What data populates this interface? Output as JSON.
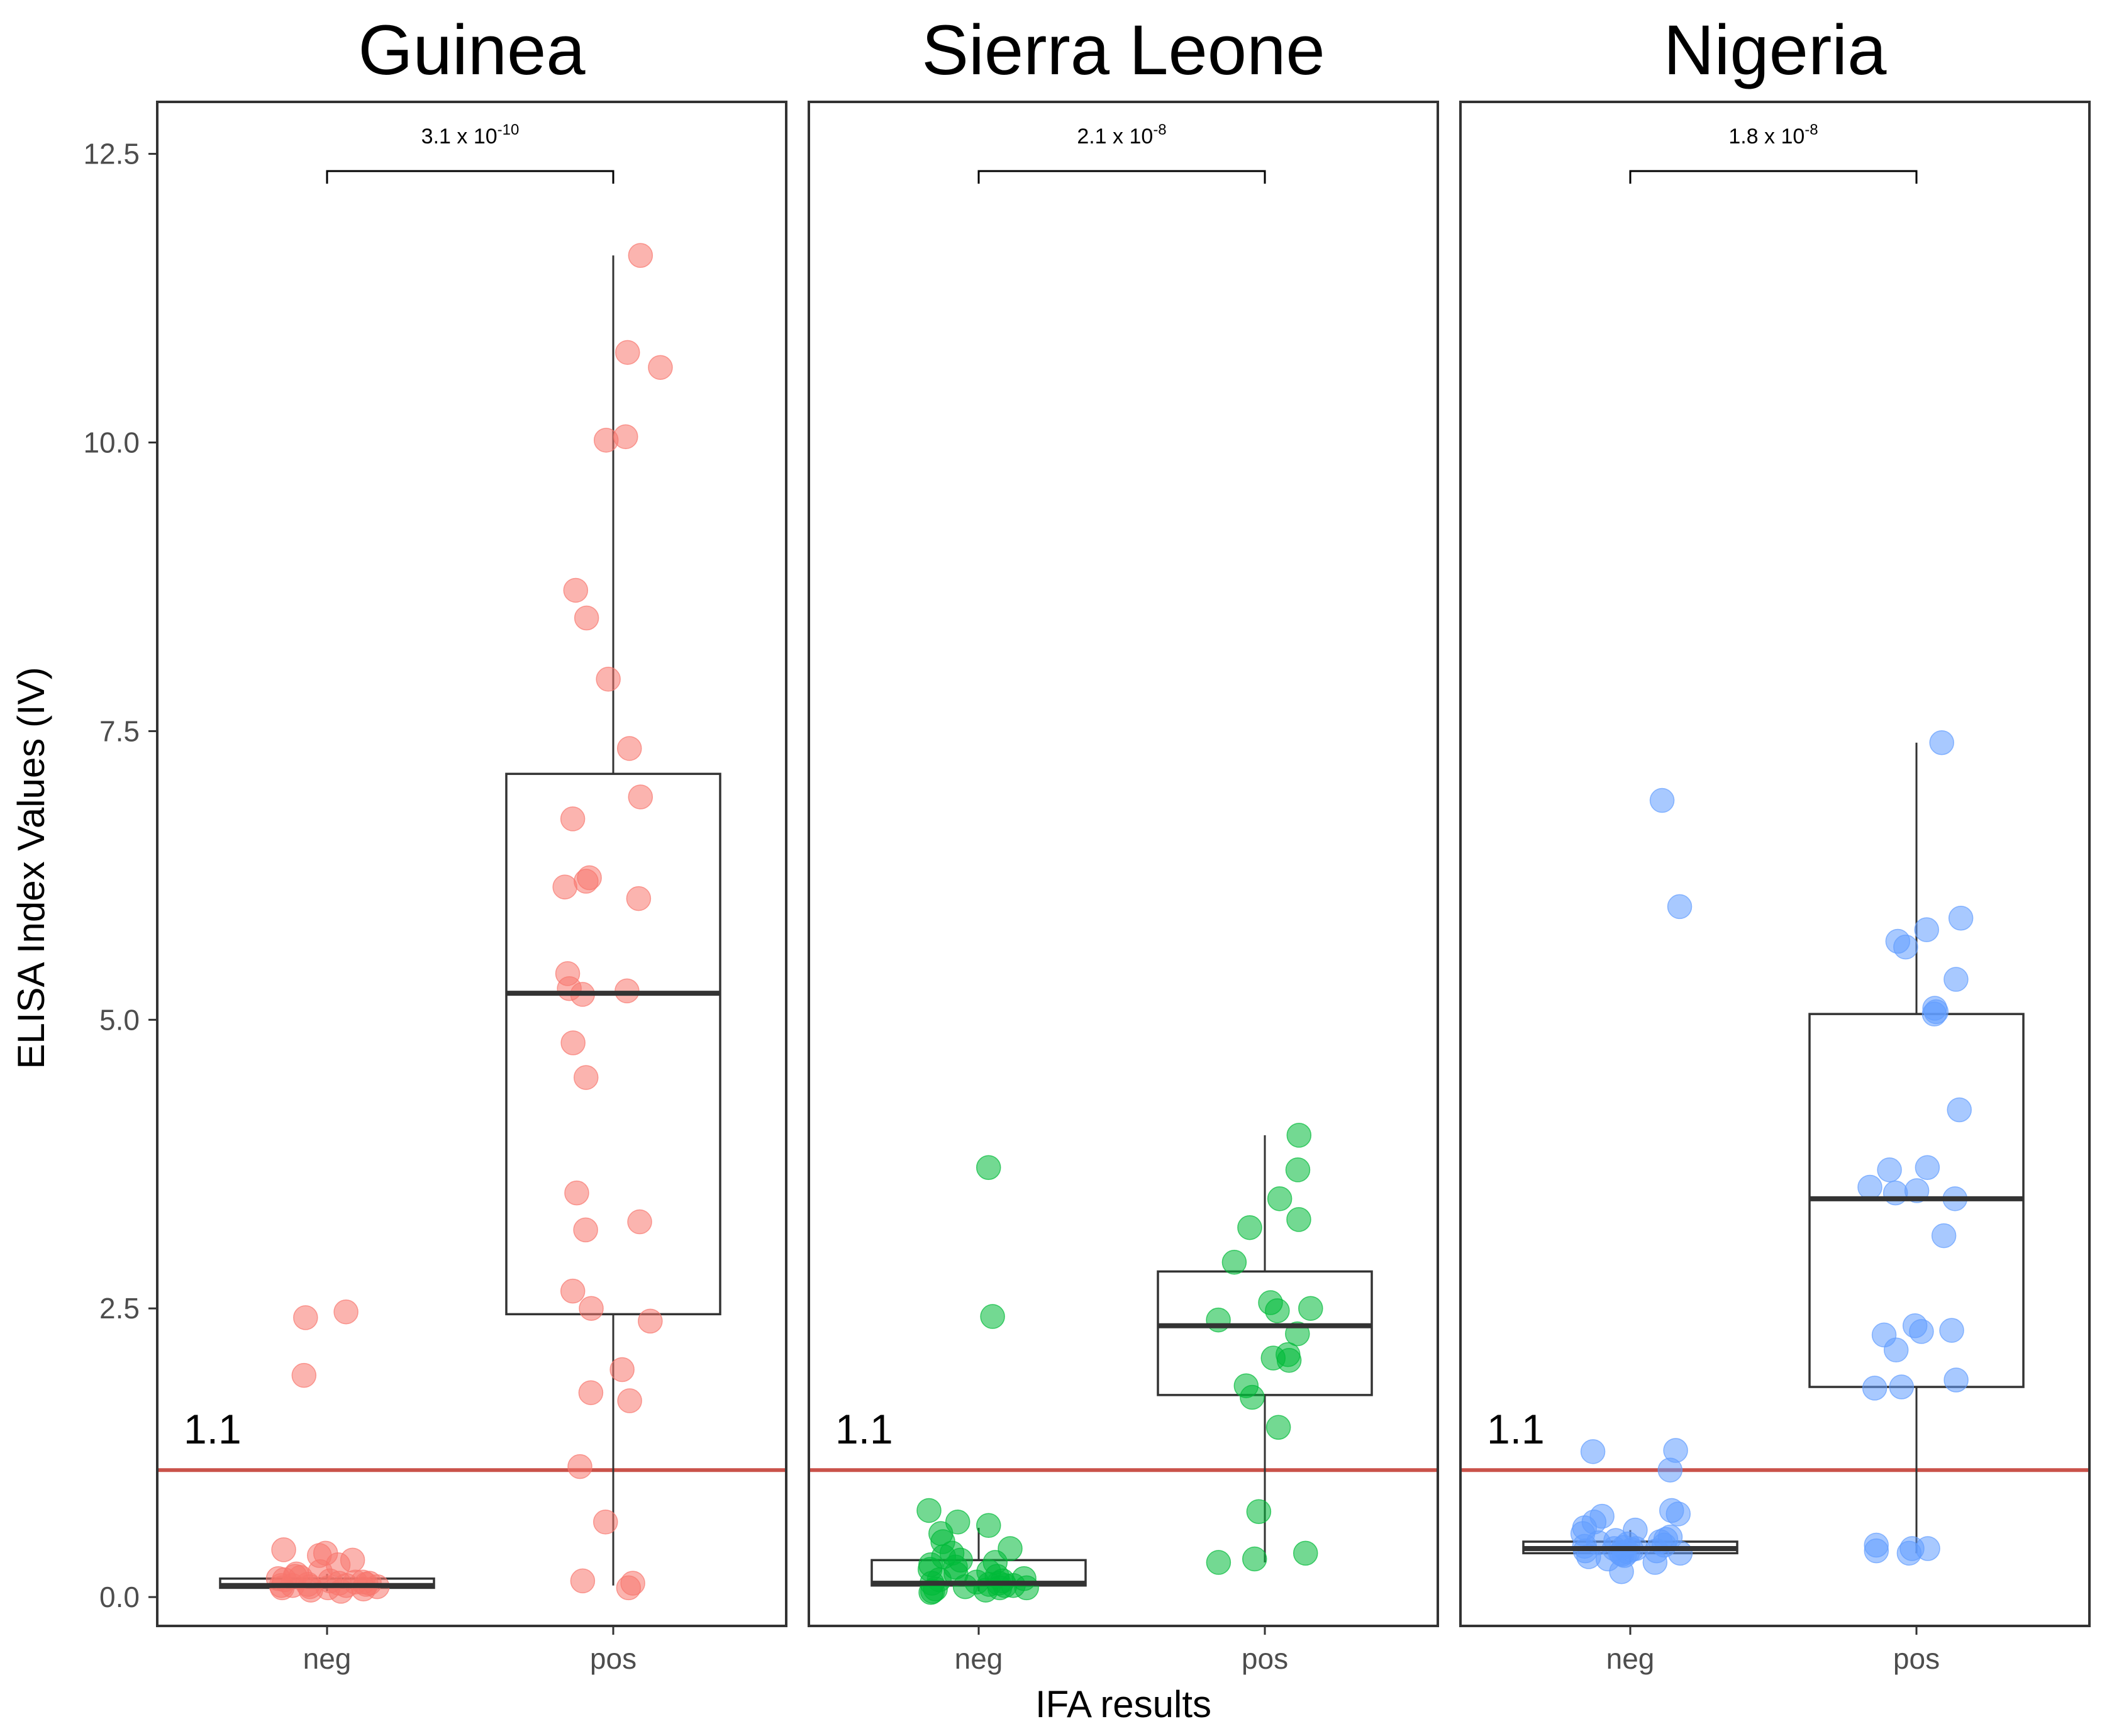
{
  "chart_data": {
    "type": "box_jitter",
    "ylabel": "ELISA Index Values (IV)",
    "xlabel": "IFA results",
    "ylim": [
      -0.25,
      12.95
    ],
    "yticks": [
      0.0,
      2.5,
      5.0,
      7.5,
      10.0,
      12.5
    ],
    "ytick_labels": [
      "0.0",
      "2.5",
      "5.0",
      "7.5",
      "10.0",
      "12.5"
    ],
    "categories": [
      "neg",
      "pos"
    ],
    "threshold": {
      "value": 1.1,
      "label": "1.1",
      "color": "#c9524a"
    },
    "panels": [
      {
        "title": "Guinea",
        "color": "#f8766d",
        "pvalue": {
          "mantissa": "3.1 x 10",
          "exponent": "-10"
        },
        "boxes": {
          "neg": {
            "q1": 0.08,
            "median": 0.1,
            "q3": 0.16,
            "low": 0.05,
            "high": 0.2
          },
          "pos": {
            "q1": 2.45,
            "median": 5.23,
            "q3": 7.13,
            "low": 0.1,
            "high": 11.62
          }
        },
        "points": {
          "neg": [
            0.05,
            0.06,
            0.07,
            0.08,
            0.08,
            0.09,
            0.09,
            0.1,
            0.1,
            0.1,
            0.11,
            0.11,
            0.12,
            0.12,
            0.13,
            0.13,
            0.14,
            0.15,
            0.16,
            0.17,
            0.18,
            0.2,
            0.22,
            0.28,
            0.32,
            0.36,
            0.38,
            0.41,
            1.92,
            2.42,
            2.47
          ],
          "pos": [
            0.08,
            0.12,
            0.14,
            0.65,
            1.13,
            1.7,
            1.77,
            1.97,
            2.39,
            2.5,
            2.65,
            3.18,
            3.25,
            3.5,
            4.5,
            4.8,
            5.22,
            5.25,
            5.27,
            5.4,
            6.05,
            6.15,
            6.2,
            6.23,
            6.74,
            6.93,
            7.35,
            7.95,
            8.48,
            8.72,
            10.02,
            10.05,
            10.65,
            10.78,
            11.62
          ]
        }
      },
      {
        "title": "Sierra Leone",
        "color": "#00ba38",
        "pvalue": {
          "mantissa": "2.1 x 10",
          "exponent": "-8"
        },
        "boxes": {
          "neg": {
            "q1": 0.1,
            "median": 0.12,
            "q3": 0.32,
            "low": 0.05,
            "high": 0.6
          },
          "pos": {
            "q1": 1.75,
            "median": 2.35,
            "q3": 2.82,
            "low": 0.3,
            "high": 4.0
          }
        },
        "points": {
          "neg": [
            0.04,
            0.05,
            0.06,
            0.07,
            0.08,
            0.08,
            0.09,
            0.1,
            0.1,
            0.11,
            0.12,
            0.12,
            0.13,
            0.14,
            0.15,
            0.16,
            0.18,
            0.2,
            0.22,
            0.24,
            0.26,
            0.28,
            0.3,
            0.32,
            0.35,
            0.38,
            0.42,
            0.48,
            0.55,
            0.62,
            0.65,
            0.75,
            2.43,
            3.72
          ],
          "pos": [
            0.3,
            0.33,
            0.38,
            0.74,
            1.47,
            1.73,
            1.83,
            2.05,
            2.07,
            2.1,
            2.28,
            2.4,
            2.48,
            2.5,
            2.55,
            2.9,
            3.2,
            3.27,
            3.45,
            3.7,
            4.0
          ]
        }
      },
      {
        "title": "Nigeria",
        "color": "#619cff",
        "pvalue": {
          "mantissa": "1.8 x 10",
          "exponent": "-8"
        },
        "boxes": {
          "neg": {
            "q1": 0.38,
            "median": 0.42,
            "q3": 0.48,
            "low": 0.3,
            "high": 0.58
          },
          "pos": {
            "q1": 1.82,
            "median": 3.45,
            "q3": 5.05,
            "low": 0.38,
            "high": 7.4
          }
        },
        "points": {
          "neg": [
            0.22,
            0.3,
            0.33,
            0.35,
            0.36,
            0.37,
            0.38,
            0.38,
            0.39,
            0.4,
            0.4,
            0.41,
            0.42,
            0.42,
            0.43,
            0.44,
            0.45,
            0.46,
            0.47,
            0.48,
            0.49,
            0.5,
            0.52,
            0.55,
            0.58,
            0.6,
            0.65,
            0.7,
            0.72,
            0.75,
            1.1,
            1.26,
            1.27,
            5.98,
            6.9
          ],
          "pos": [
            0.38,
            0.4,
            0.42,
            0.42,
            0.45,
            1.81,
            1.82,
            1.88,
            2.14,
            2.27,
            2.3,
            2.31,
            2.35,
            3.13,
            3.45,
            3.5,
            3.52,
            3.55,
            3.7,
            3.72,
            4.22,
            5.05,
            5.07,
            5.1,
            5.35,
            5.63,
            5.68,
            5.78,
            5.88,
            7.4
          ]
        }
      }
    ]
  }
}
